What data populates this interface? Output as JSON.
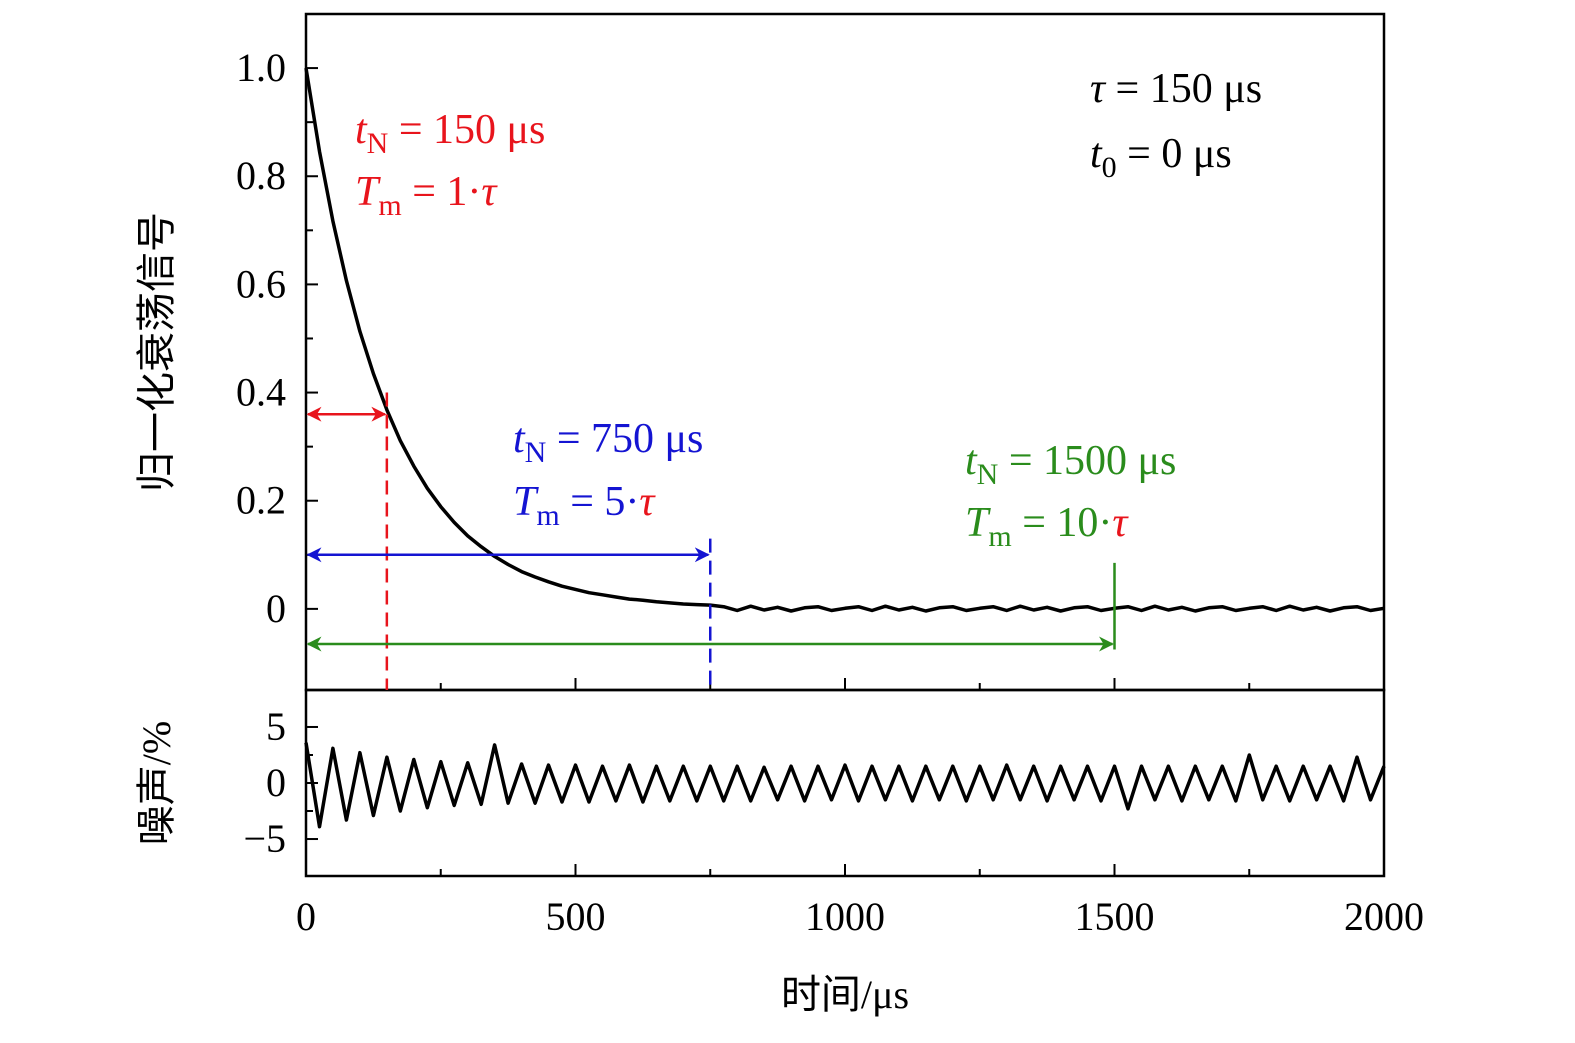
{
  "chart_data": [
    {
      "type": "line",
      "ylabel": "归一化衰荡信号",
      "color": "#000000",
      "x": [
        0,
        25,
        50,
        75,
        100,
        125,
        150,
        175,
        200,
        225,
        250,
        275,
        300,
        325,
        350,
        375,
        400,
        425,
        450,
        475,
        500,
        525,
        550,
        575,
        600,
        625,
        650,
        675,
        700,
        725,
        750,
        775,
        800,
        825,
        850,
        875,
        900,
        925,
        950,
        975,
        1000,
        1025,
        1050,
        1075,
        1100,
        1125,
        1150,
        1175,
        1200,
        1225,
        1250,
        1275,
        1300,
        1325,
        1350,
        1375,
        1400,
        1425,
        1450,
        1475,
        1500,
        1525,
        1550,
        1575,
        1600,
        1625,
        1650,
        1675,
        1700,
        1725,
        1750,
        1775,
        1800,
        1825,
        1850,
        1875,
        1900,
        1925,
        1950,
        1975,
        2000
      ],
      "values": [
        1,
        0.846,
        0.717,
        0.607,
        0.513,
        0.435,
        0.368,
        0.311,
        0.264,
        0.223,
        0.189,
        0.16,
        0.135,
        0.115,
        0.097,
        0.082,
        0.069,
        0.059,
        0.05,
        0.042,
        0.036,
        0.03,
        0.026,
        0.022,
        0.018,
        0.016,
        0.013,
        0.011,
        0.009,
        0.008,
        0.007,
        0.004,
        -0.003,
        0.005,
        -0.002,
        0.003,
        -0.004,
        0.002,
        0.004,
        -0.003,
        0.001,
        0.004,
        -0.003,
        0.005,
        -0.002,
        0.003,
        -0.004,
        0.002,
        0.004,
        -0.003,
        0.001,
        0.004,
        -0.003,
        0.005,
        -0.002,
        0.003,
        -0.004,
        0.002,
        0.004,
        -0.003,
        0.001,
        0.004,
        -0.003,
        0.005,
        -0.002,
        0.003,
        -0.004,
        0.002,
        0.004,
        -0.003,
        0.001,
        0.004,
        -0.003,
        0.005,
        -0.002,
        0.003,
        -0.004,
        0.002,
        0.004,
        -0.003,
        0.001
      ],
      "xlim": [
        0,
        2000
      ],
      "ylim": [
        -0.15,
        1.1
      ],
      "yticks": [
        0,
        0.2,
        0.4,
        0.6,
        0.8,
        {
          "value": 1,
          "label": "1.0"
        }
      ],
      "yminorticks": [
        0.1,
        0.3,
        0.5,
        0.7,
        0.9
      ],
      "markers": [
        {
          "t": 150,
          "color": "#e8141c"
        },
        {
          "t": 750,
          "color": "#1414d2"
        },
        {
          "t": 1500,
          "color": "#2a8c1c"
        }
      ],
      "annotations": [
        [
          [
            {
              "text": "t",
              "color": "#e8141c",
              "italic": true
            },
            {
              "text": "N",
              "color": "#e8141c",
              "sub": true
            },
            {
              "text": " = 150 μs",
              "color": "#e8141c"
            }
          ],
          [
            {
              "text": "T",
              "color": "#e8141c",
              "italic": true
            },
            {
              "text": "m",
              "color": "#e8141c",
              "sub": true
            },
            {
              "text": " = 1·",
              "color": "#e8141c"
            },
            {
              "text": "τ",
              "color": "#e8141c",
              "italic": true
            }
          ]
        ],
        [
          [
            {
              "text": "t",
              "color": "#1414d2",
              "italic": true
            },
            {
              "text": "N",
              "color": "#1414d2",
              "sub": true
            },
            {
              "text": " = 750 μs",
              "color": "#1414d2"
            }
          ],
          [
            {
              "text": "T",
              "color": "#1414d2",
              "italic": true
            },
            {
              "text": "m",
              "color": "#1414d2",
              "sub": true
            },
            {
              "text": " = 5·",
              "color": "#1414d2"
            },
            {
              "text": "τ",
              "color": "#e8141c",
              "italic": true
            }
          ]
        ],
        [
          [
            {
              "text": "t",
              "color": "#2a8c1c",
              "italic": true
            },
            {
              "text": "N",
              "color": "#2a8c1c",
              "sub": true
            },
            {
              "text": " = 1500 μs",
              "color": "#2a8c1c"
            }
          ],
          [
            {
              "text": "T",
              "color": "#2a8c1c",
              "italic": true
            },
            {
              "text": "m",
              "color": "#2a8c1c",
              "sub": true
            },
            {
              "text": " = 10·",
              "color": "#2a8c1c"
            },
            {
              "text": "τ",
              "color": "#e8141c",
              "italic": true
            }
          ]
        ],
        [
          [
            {
              "text": "τ",
              "color": "#000000",
              "italic": true
            },
            {
              "text": " = 150 μs",
              "color": "#000000"
            }
          ],
          [
            {
              "text": "t",
              "color": "#000000",
              "italic": true
            },
            {
              "text": "0",
              "color": "#000000",
              "sub": true
            },
            {
              "text": " = 0 μs",
              "color": "#000000"
            }
          ]
        ]
      ]
    },
    {
      "type": "line",
      "ylabel": "噪声/%",
      "xlabel": "时间/μs",
      "color": "#000000",
      "x": [
        0,
        25,
        50,
        75,
        100,
        125,
        150,
        175,
        200,
        225,
        250,
        275,
        300,
        325,
        350,
        375,
        400,
        425,
        450,
        475,
        500,
        525,
        550,
        575,
        600,
        625,
        650,
        675,
        700,
        725,
        750,
        775,
        800,
        825,
        850,
        875,
        900,
        925,
        950,
        975,
        1000,
        1025,
        1050,
        1075,
        1100,
        1125,
        1150,
        1175,
        1200,
        1225,
        1250,
        1275,
        1300,
        1325,
        1350,
        1375,
        1400,
        1425,
        1450,
        1475,
        1500,
        1525,
        1550,
        1575,
        1600,
        1625,
        1650,
        1675,
        1700,
        1725,
        1750,
        1775,
        1800,
        1825,
        1850,
        1875,
        1900,
        1925,
        1950,
        1975,
        2000
      ],
      "values": [
        3.6,
        -3.9,
        3.1,
        -3.3,
        2.7,
        -2.9,
        2.3,
        -2.5,
        2.1,
        -2.2,
        1.9,
        -2.0,
        1.8,
        -1.9,
        3.4,
        -1.8,
        1.7,
        -1.8,
        1.6,
        -1.7,
        1.6,
        -1.7,
        1.5,
        -1.6,
        1.6,
        -1.7,
        1.5,
        -1.6,
        1.5,
        -1.6,
        1.5,
        -1.6,
        1.5,
        -1.6,
        1.4,
        -1.5,
        1.5,
        -1.6,
        1.5,
        -1.5,
        1.6,
        -1.6,
        1.5,
        -1.5,
        1.5,
        -1.6,
        1.5,
        -1.5,
        1.5,
        -1.6,
        1.5,
        -1.5,
        1.6,
        -1.5,
        1.5,
        -1.6,
        1.5,
        -1.5,
        1.5,
        -1.6,
        1.5,
        -2.3,
        1.5,
        -1.5,
        1.5,
        -1.6,
        1.5,
        -1.5,
        1.5,
        -1.6,
        2.5,
        -1.5,
        1.5,
        -1.6,
        1.5,
        -1.5,
        1.5,
        -1.6,
        2.3,
        -1.5,
        1.5
      ],
      "xlim": [
        0,
        2000
      ],
      "ylim": [
        -8.3,
        8.3
      ],
      "xticks": [
        0,
        500,
        1000,
        1500,
        2000
      ],
      "xminorticks": [
        250,
        750,
        1250,
        1750
      ],
      "yticks": [
        {
          "value": -5,
          "label": "−5"
        },
        0,
        5
      ],
      "yminorticks": [
        -2.5,
        2.5
      ]
    }
  ]
}
